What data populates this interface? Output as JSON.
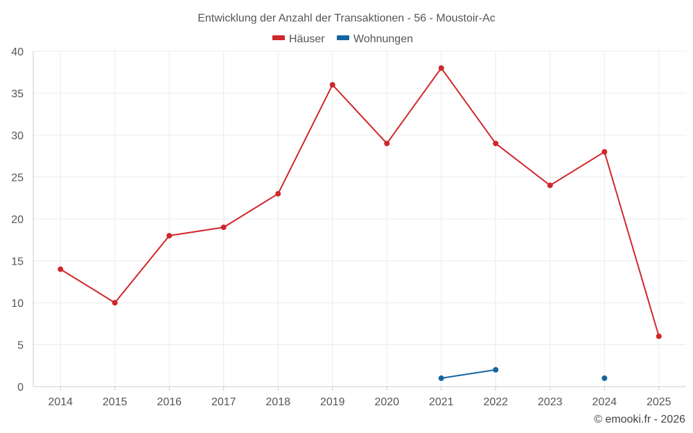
{
  "chart_data": {
    "type": "line",
    "title": "Entwicklung der Anzahl der Transaktionen - 56 - Moustoir-Ac",
    "categories": [
      "2014",
      "2015",
      "2016",
      "2017",
      "2018",
      "2019",
      "2020",
      "2021",
      "2022",
      "2023",
      "2024",
      "2025"
    ],
    "ylim": [
      0,
      40
    ],
    "yticks": [
      "0",
      "5",
      "10",
      "15",
      "20",
      "25",
      "30",
      "35",
      "40"
    ],
    "grid": true,
    "legend_position": "top-center",
    "series": [
      {
        "name": "Häuser",
        "color": "#d0262a",
        "values": [
          14,
          10,
          18,
          19,
          23,
          36,
          29,
          38,
          29,
          24,
          28,
          6
        ]
      },
      {
        "name": "Wohnungen",
        "color": "#1565a0",
        "values": [
          null,
          null,
          null,
          null,
          null,
          null,
          null,
          1,
          2,
          null,
          1,
          null
        ]
      }
    ],
    "credit": "© emooki.fr - 2026"
  }
}
